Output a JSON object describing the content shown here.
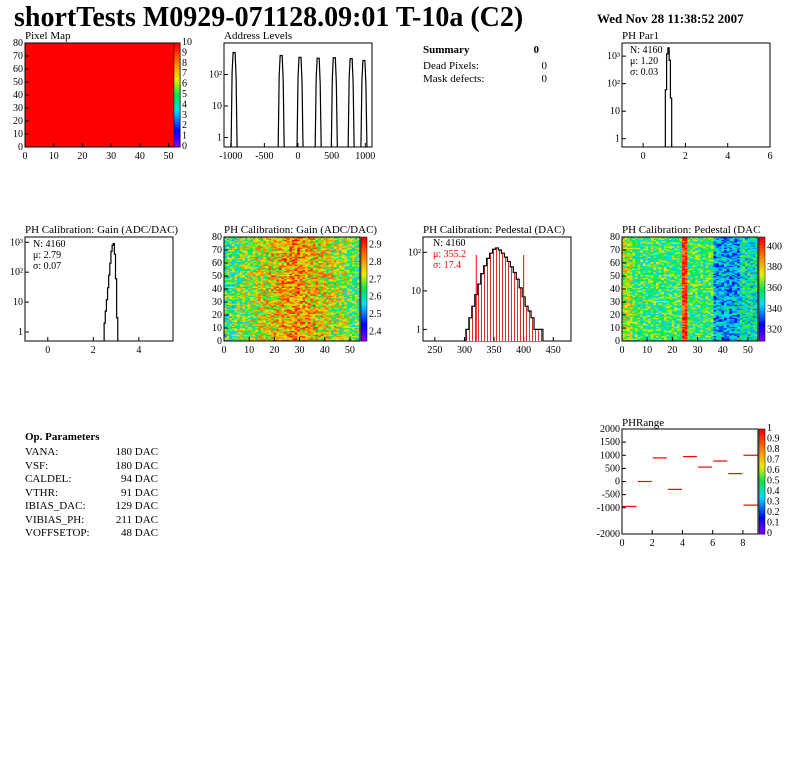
{
  "header": {
    "title": "shortTests M0929-071128.09:01 T-10a (C2)",
    "datestamp": "Wed Nov 28 11:38:52 2007"
  },
  "summary": {
    "title": "Summary",
    "total": "0",
    "rows": [
      {
        "label": "Dead Pixels:",
        "value": "0"
      },
      {
        "label": "Mask defects:",
        "value": "0"
      }
    ]
  },
  "op_params": {
    "title": "Op. Parameters",
    "rows": [
      {
        "name": "VANA:",
        "value": "180 DAC"
      },
      {
        "name": "VSF:",
        "value": "180 DAC"
      },
      {
        "name": "CALDEL:",
        "value": "94 DAC"
      },
      {
        "name": "VTHR:",
        "value": "91 DAC"
      },
      {
        "name": "IBIAS_DAC:",
        "value": "129 DAC"
      },
      {
        "name": "VIBIAS_PH:",
        "value": "211 DAC"
      },
      {
        "name": "VOFFSETOP:",
        "value": "48 DAC"
      }
    ]
  },
  "colors": {
    "red": "#ff0000",
    "hist_line": "#000000",
    "fill_red": "#cc0000"
  },
  "chart_data": [
    {
      "id": "pixelmap",
      "type": "heatmap",
      "title": "Pixel Map",
      "xlim": [
        0,
        52
      ],
      "ylim": [
        0,
        80
      ],
      "xticks": [
        "0",
        "10",
        "20",
        "30",
        "40",
        "50"
      ],
      "yticks": [
        "0",
        "10",
        "20",
        "30",
        "40",
        "50",
        "60",
        "70",
        "80"
      ],
      "uniform_value": 10,
      "z_range": [
        0,
        10
      ],
      "z_ticks": [
        "0",
        "1",
        "2",
        "3",
        "4",
        "5",
        "6",
        "7",
        "8",
        "9",
        "10"
      ]
    },
    {
      "id": "addr",
      "type": "bar",
      "title": "Address Levels",
      "xlim": [
        -1100,
        1100
      ],
      "ylog": true,
      "xticks": [
        "-1000",
        "-500",
        "0",
        "500",
        "1000"
      ],
      "yticks": [
        "1",
        "10",
        "10²"
      ],
      "peaks": [
        {
          "x": -950,
          "height": 500
        },
        {
          "x": -250,
          "height": 400
        },
        {
          "x": 30,
          "height": 350
        },
        {
          "x": 300,
          "height": 330
        },
        {
          "x": 540,
          "height": 340
        },
        {
          "x": 790,
          "height": 320
        },
        {
          "x": 980,
          "height": 280
        }
      ]
    },
    {
      "id": "phpar1",
      "type": "bar",
      "title": "PH Par1",
      "xlim": [
        -1,
        6
      ],
      "ylog": true,
      "xticks": [
        "0",
        "2",
        "4",
        "6"
      ],
      "yticks": [
        "1",
        "10",
        "10²",
        "10³"
      ],
      "stats": {
        "n": "N: 4160",
        "mu": "μ: 1.20",
        "sigma": "σ: 0.03"
      },
      "bins": [
        {
          "x": 1.08,
          "y": 60
        },
        {
          "x": 1.14,
          "y": 1200
        },
        {
          "x": 1.2,
          "y": 2000
        },
        {
          "x": 1.26,
          "y": 700
        },
        {
          "x": 1.32,
          "y": 30
        }
      ]
    },
    {
      "id": "gain1d",
      "type": "bar",
      "title": "PH Calibration: Gain (ADC/DAC)",
      "xlim": [
        -1,
        5.5
      ],
      "ylog": true,
      "xticks": [
        "0",
        "2",
        "4"
      ],
      "yticks": [
        "1",
        "10",
        "10²",
        "10³"
      ],
      "stats": {
        "n": "N: 4160",
        "mu": "μ: 2.79",
        "sigma": "σ: 0.07"
      },
      "bins": [
        {
          "x": 2.5,
          "y": 2
        },
        {
          "x": 2.55,
          "y": 5
        },
        {
          "x": 2.6,
          "y": 12
        },
        {
          "x": 2.65,
          "y": 30
        },
        {
          "x": 2.7,
          "y": 80
        },
        {
          "x": 2.75,
          "y": 200
        },
        {
          "x": 2.8,
          "y": 500
        },
        {
          "x": 2.85,
          "y": 800
        },
        {
          "x": 2.9,
          "y": 900
        },
        {
          "x": 2.95,
          "y": 400
        },
        {
          "x": 3.0,
          "y": 60
        },
        {
          "x": 3.05,
          "y": 3
        }
      ]
    },
    {
      "id": "gainmap",
      "type": "heatmap",
      "title": "PH Calibration: Gain (ADC/DAC)",
      "xlim": [
        0,
        52
      ],
      "ylim": [
        0,
        80
      ],
      "xticks": [
        "0",
        "10",
        "20",
        "30",
        "40",
        "50"
      ],
      "yticks": [
        "0",
        "10",
        "20",
        "30",
        "40",
        "50",
        "60",
        "70",
        "80"
      ],
      "z_range": [
        2.35,
        2.95
      ],
      "z_ticks": [
        "2.4",
        "2.5",
        "2.6",
        "2.7",
        "2.8",
        "2.9"
      ]
    },
    {
      "id": "ped1d",
      "type": "bar",
      "title": "PH Calibration: Pedestal (DAC)",
      "xlim": [
        230,
        480
      ],
      "ylog": true,
      "xticks": [
        "250",
        "300",
        "350",
        "400",
        "450"
      ],
      "yticks": [
        "1",
        "10",
        "10²"
      ],
      "stats": {
        "n": "N: 4160",
        "mu": "μ: 355.2",
        "sigma": "σ: 17.4"
      },
      "cut_lines": [
        320,
        400
      ],
      "bins": [
        {
          "x": 305,
          "y": 1
        },
        {
          "x": 310,
          "y": 2
        },
        {
          "x": 315,
          "y": 4
        },
        {
          "x": 320,
          "y": 8
        },
        {
          "x": 325,
          "y": 15
        },
        {
          "x": 330,
          "y": 28
        },
        {
          "x": 335,
          "y": 45
        },
        {
          "x": 340,
          "y": 70
        },
        {
          "x": 345,
          "y": 95
        },
        {
          "x": 350,
          "y": 120
        },
        {
          "x": 355,
          "y": 130
        },
        {
          "x": 360,
          "y": 115
        },
        {
          "x": 365,
          "y": 95
        },
        {
          "x": 370,
          "y": 75
        },
        {
          "x": 375,
          "y": 58
        },
        {
          "x": 380,
          "y": 42
        },
        {
          "x": 385,
          "y": 30
        },
        {
          "x": 390,
          "y": 20
        },
        {
          "x": 395,
          "y": 12
        },
        {
          "x": 400,
          "y": 7
        },
        {
          "x": 405,
          "y": 4
        },
        {
          "x": 410,
          "y": 3
        },
        {
          "x": 415,
          "y": 2
        },
        {
          "x": 420,
          "y": 1
        },
        {
          "x": 425,
          "y": 1
        },
        {
          "x": 430,
          "y": 1
        }
      ]
    },
    {
      "id": "pedmap",
      "type": "heatmap",
      "title": "PH Calibration: Pedestal (DAC",
      "xlim": [
        0,
        52
      ],
      "ylim": [
        0,
        80
      ],
      "xticks": [
        "0",
        "10",
        "20",
        "30",
        "40",
        "50"
      ],
      "yticks": [
        "0",
        "10",
        "20",
        "30",
        "40",
        "50",
        "60",
        "70",
        "80"
      ],
      "z_range": [
        310,
        410
      ],
      "z_ticks": [
        "320",
        "340",
        "360",
        "380",
        "400"
      ]
    },
    {
      "id": "phrange",
      "type": "scatter",
      "title": "PHRange",
      "xlim": [
        0,
        9
      ],
      "ylim": [
        -2000,
        2000
      ],
      "xticks": [
        "0",
        "2",
        "4",
        "6",
        "8"
      ],
      "yticks": [
        "-2000",
        "-1000",
        "-500",
        "0",
        "500",
        "1000",
        "1500",
        "2000"
      ],
      "z_ticks": [
        "0",
        "0.1",
        "0.2",
        "0.3",
        "0.4",
        "0.5",
        "0.6",
        "0.7",
        "0.8",
        "0.9",
        "1"
      ],
      "points": [
        {
          "x": 0.5,
          "y": -950
        },
        {
          "x": 1.5,
          "y": 0
        },
        {
          "x": 2.5,
          "y": 900
        },
        {
          "x": 3.5,
          "y": -300
        },
        {
          "x": 4.5,
          "y": 950
        },
        {
          "x": 5.5,
          "y": 550
        },
        {
          "x": 6.5,
          "y": 780
        },
        {
          "x": 7.5,
          "y": 300
        },
        {
          "x": 8.5,
          "y": 1000
        },
        {
          "x": 8.5,
          "y": -900
        }
      ]
    }
  ]
}
